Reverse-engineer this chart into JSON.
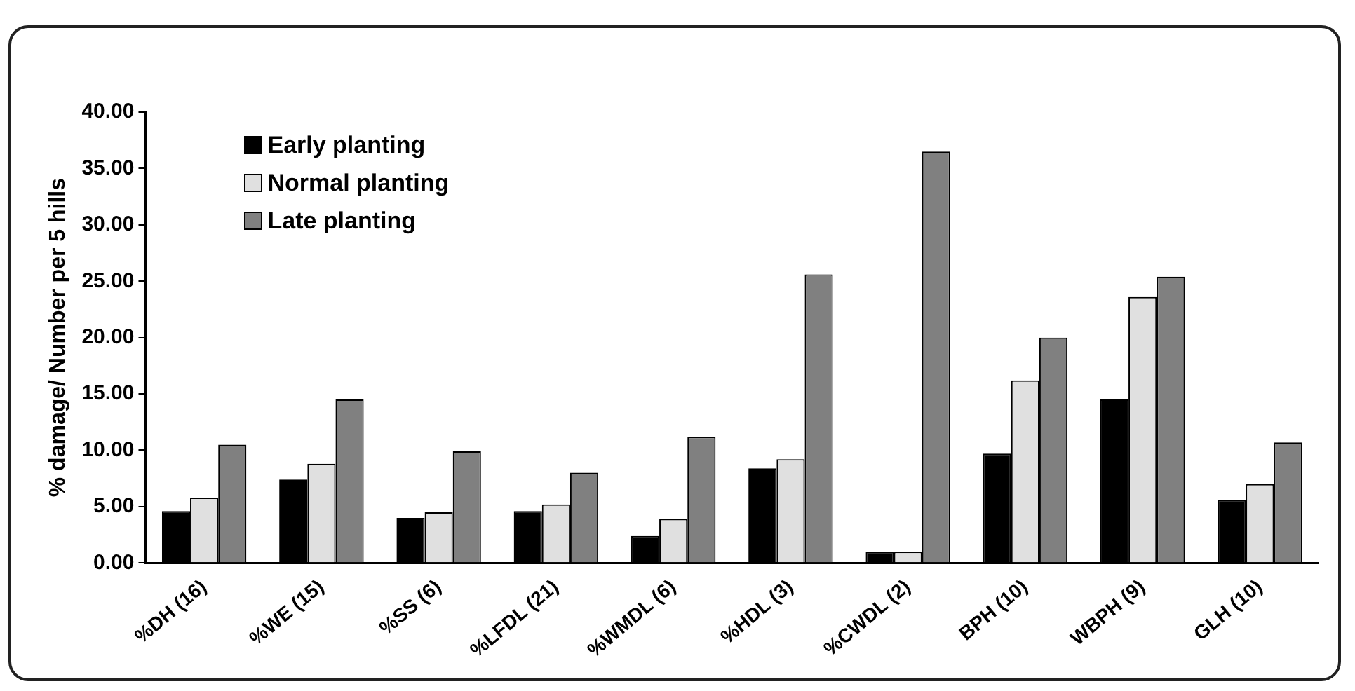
{
  "chart_data": {
    "type": "bar",
    "ylabel": "% damage/ Number per 5 hills",
    "categories": [
      "%DH (16)",
      "%WE (15)",
      "%SS (6)",
      "%LFDL (21)",
      "%WMDL (6)",
      "%HDL (3)",
      "%CWDL (2)",
      "BPH (10)",
      "WBPH (9)",
      "GLH (10)"
    ],
    "series": [
      {
        "name": "Early planting",
        "color": "#000000",
        "values": [
          4.6,
          7.4,
          4.0,
          4.6,
          2.4,
          8.4,
          1.0,
          9.7,
          14.5,
          5.6
        ]
      },
      {
        "name": "Normal planting",
        "color": "#e0e0e0",
        "values": [
          5.8,
          8.8,
          4.5,
          5.2,
          3.9,
          9.2,
          1.0,
          16.2,
          23.6,
          7.0
        ]
      },
      {
        "name": "Late planting",
        "color": "#808080",
        "values": [
          10.5,
          14.5,
          9.9,
          8.0,
          11.2,
          25.6,
          36.5,
          20.0,
          25.4,
          10.7
        ]
      }
    ],
    "ylim": [
      0,
      40
    ],
    "yticks": [
      {
        "value": 0,
        "label": "0.00"
      },
      {
        "value": 5,
        "label": "5.00"
      },
      {
        "value": 10,
        "label": "10.00"
      },
      {
        "value": 15,
        "label": "15.00"
      },
      {
        "value": 20,
        "label": "20.00"
      },
      {
        "value": 25,
        "label": "25.00"
      },
      {
        "value": 30,
        "label": "30.00"
      },
      {
        "value": 35,
        "label": "35.00"
      },
      {
        "value": 40,
        "label": "40.00"
      }
    ],
    "grid": false,
    "legend": "top left"
  }
}
